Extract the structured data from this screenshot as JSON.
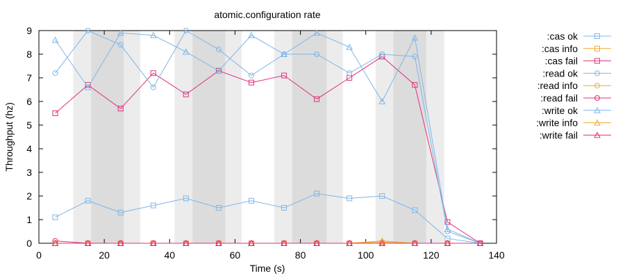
{
  "chart_data": {
    "type": "line",
    "title": "atomic.configuration rate",
    "xlabel": "Time (s)",
    "ylabel": "Throughput (hz)",
    "xlim": [
      0,
      140
    ],
    "ylim": [
      0,
      9
    ],
    "xticks": [
      0,
      20,
      40,
      60,
      80,
      100,
      120,
      140
    ],
    "yticks": [
      0,
      1,
      2,
      3,
      4,
      5,
      6,
      7,
      8,
      9
    ],
    "grid": false,
    "legend_position": "right",
    "background_bands": [
      {
        "from": 10.5,
        "to": 31,
        "shade": "light"
      },
      {
        "from": 16,
        "to": 26,
        "shade": "dark"
      },
      {
        "from": 41.5,
        "to": 62,
        "shade": "light"
      },
      {
        "from": 47,
        "to": 57,
        "shade": "dark"
      },
      {
        "from": 72,
        "to": 93,
        "shade": "light"
      },
      {
        "from": 77.5,
        "to": 88,
        "shade": "dark"
      },
      {
        "from": 103,
        "to": 124,
        "shade": "light"
      },
      {
        "from": 108.5,
        "to": 118.5,
        "shade": "dark"
      }
    ],
    "series": [
      {
        "name": ":cas ok",
        "color": "#7eb6e8",
        "marker": "square",
        "x": [
          5,
          15,
          25,
          35,
          45,
          55,
          65,
          75,
          85,
          95,
          105,
          115,
          125,
          135
        ],
        "y": [
          1.1,
          1.8,
          1.3,
          1.6,
          1.9,
          1.5,
          1.8,
          1.5,
          2.1,
          1.9,
          2.0,
          1.4,
          0.2,
          0
        ]
      },
      {
        "name": ":cas info",
        "color": "#f0a830",
        "marker": "square",
        "x": [
          5,
          15,
          25,
          35,
          45,
          55,
          65,
          75,
          85,
          95,
          105,
          115,
          125,
          135
        ],
        "y": [
          0,
          0,
          0,
          0,
          0,
          0,
          0,
          0,
          0,
          0,
          0,
          0,
          0,
          0
        ]
      },
      {
        "name": ":cas fail",
        "color": "#e0307a",
        "marker": "square",
        "x": [
          5,
          15,
          25,
          35,
          45,
          55,
          65,
          75,
          85,
          95,
          105,
          115,
          125,
          135
        ],
        "y": [
          5.5,
          6.7,
          5.7,
          7.2,
          6.3,
          7.3,
          6.8,
          7.1,
          6.1,
          7.0,
          7.9,
          6.7,
          0.9,
          0
        ]
      },
      {
        "name": ":read ok",
        "color": "#7eb6e8",
        "marker": "circle",
        "x": [
          5,
          15,
          25,
          35,
          45,
          55,
          65,
          75,
          85,
          95,
          105,
          115,
          125,
          135
        ],
        "y": [
          7.2,
          9.0,
          8.4,
          6.6,
          9.0,
          8.2,
          7.1,
          8.0,
          8.0,
          7.2,
          8.0,
          7.9,
          0.5,
          0
        ]
      },
      {
        "name": ":read info",
        "color": "#f0a830",
        "marker": "circle",
        "x": [
          5,
          15,
          25,
          35,
          45,
          55,
          65,
          75,
          85,
          95,
          105,
          115,
          125,
          135
        ],
        "y": [
          0,
          0,
          0,
          0,
          0,
          0,
          0,
          0,
          0,
          0,
          0.05,
          0,
          0,
          0
        ]
      },
      {
        "name": ":read fail",
        "color": "#e0307a",
        "marker": "circle",
        "x": [
          5,
          15,
          25,
          35,
          45,
          55,
          65,
          75,
          85,
          95,
          105,
          115,
          125,
          135
        ],
        "y": [
          0.1,
          0,
          0,
          0,
          0,
          0,
          0,
          0,
          0,
          0,
          0,
          0,
          0,
          0
        ]
      },
      {
        "name": ":write ok",
        "color": "#7eb6e8",
        "marker": "triangle",
        "x": [
          5,
          15,
          25,
          35,
          45,
          55,
          65,
          75,
          85,
          95,
          105,
          115,
          125,
          135
        ],
        "y": [
          8.6,
          6.6,
          8.9,
          8.8,
          8.1,
          7.3,
          8.8,
          8.0,
          8.9,
          8.3,
          6.0,
          8.7,
          0.6,
          0
        ]
      },
      {
        "name": ":write info",
        "color": "#f0a830",
        "marker": "triangle",
        "x": [
          5,
          15,
          25,
          35,
          45,
          55,
          65,
          75,
          85,
          95,
          105,
          115,
          125,
          135
        ],
        "y": [
          0,
          0,
          0,
          0,
          0,
          0,
          0,
          0,
          0,
          0,
          0.1,
          0,
          0,
          0
        ]
      },
      {
        "name": ":write fail",
        "color": "#e0307a",
        "marker": "triangle",
        "x": [
          5,
          15,
          25,
          35,
          45,
          55,
          65,
          75,
          85,
          95,
          105,
          115,
          125,
          135
        ],
        "y": [
          0,
          0,
          0,
          0,
          0,
          0,
          0,
          0,
          0,
          0,
          0,
          0,
          0,
          0
        ]
      }
    ]
  }
}
